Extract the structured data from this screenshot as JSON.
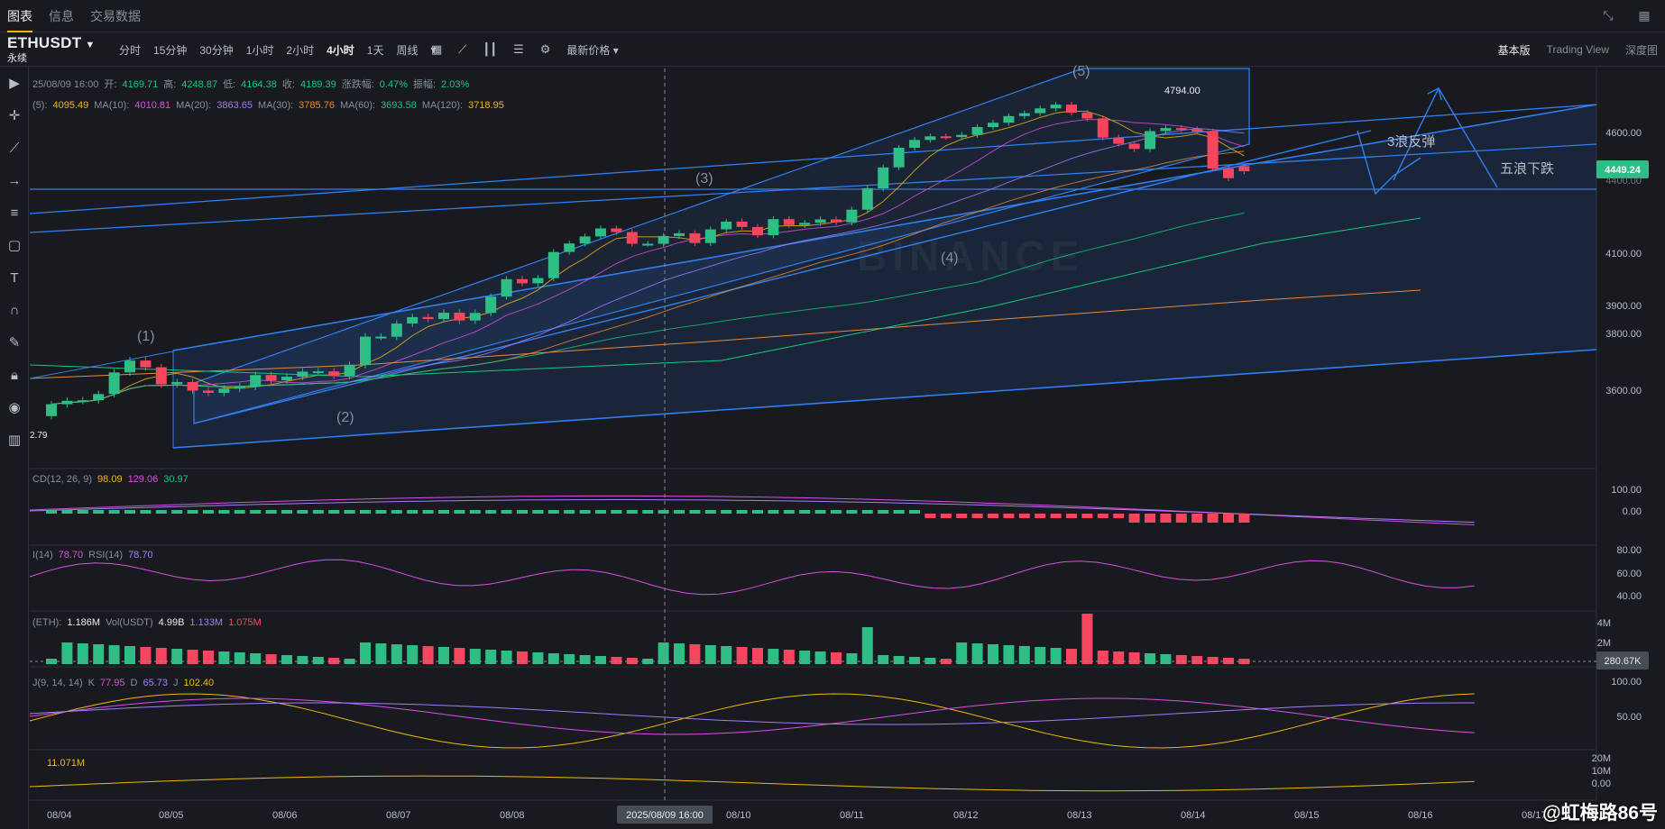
{
  "tabs": [
    "图表",
    "信息",
    "交易数据"
  ],
  "active_tab": 0,
  "symbol": {
    "name": "ETHUSDT",
    "sub": "永续"
  },
  "intervals": [
    "分时",
    "15分钟",
    "30分钟",
    "1小时",
    "2小时",
    "4小时",
    "1天",
    "周线"
  ],
  "active_interval": 5,
  "price_type": "最新价格",
  "views": [
    "基本版",
    "Trading View",
    "深度图"
  ],
  "active_view": 0,
  "ohlc": {
    "date": "25/08/09 16:00",
    "open_l": "开:",
    "open": "4169.71",
    "high_l": "高:",
    "high": "4248.87",
    "low_l": "低:",
    "low": "4164.38",
    "close_l": "收:",
    "close": "4189.39",
    "chg_l": "涨跌幅:",
    "chg": "0.47%",
    "amp_l": "振幅:",
    "amp": "2.03%"
  },
  "ma": {
    "ma5_l": "(5):",
    "ma5": "4095.49",
    "ma10_l": "MA(10):",
    "ma10": "4010.81",
    "ma20_l": "MA(20):",
    "ma20": "3863.65",
    "ma30_l": "MA(30):",
    "ma30": "3785.76",
    "ma60_l": "MA(60):",
    "ma60": "3693.58",
    "ma120_l": "MA(120):",
    "ma120": "3718.95"
  },
  "macd": {
    "label": "CD(12, 26, 9)",
    "dif": "98.09",
    "dea": "129.06",
    "hist": "30.97"
  },
  "rsi": {
    "label1": "I(14)",
    "v1": "78.70",
    "label2": "RSI(14)",
    "v2": "78.70"
  },
  "vol": {
    "label": "(ETH):",
    "v": "1.186M",
    "label2": "Vol(USDT)",
    "v2": "4.99B",
    "v3": "1.133M",
    "v4": "1.075M"
  },
  "kdj": {
    "label": "J(9, 14, 14)",
    "k_l": "K",
    "k": "77.95",
    "d_l": "D",
    "d": "65.73",
    "j_l": "J",
    "j": "102.40"
  },
  "extra": {
    "v": "11.071M"
  },
  "price_axis": [
    "4600.00",
    "4400.00",
    "4100.00",
    "3900.00",
    "3800.00",
    "3600.00"
  ],
  "current_price": "4449.24",
  "macd_axis": [
    "100.00",
    "0.00"
  ],
  "rsi_axis": [
    "80.00",
    "60.00",
    "40.00"
  ],
  "vol_axis": [
    "4M",
    "2M"
  ],
  "vol_current": "280.67K",
  "kdj_axis": [
    "100.00",
    "50.00"
  ],
  "extra_axis": [
    "20M",
    "10M",
    "0.00"
  ],
  "dates": [
    "08/04",
    "08/05",
    "08/06",
    "08/07",
    "08/08",
    "08/10",
    "08/11",
    "08/12",
    "08/13",
    "08/14",
    "08/15",
    "08/16",
    "08/17"
  ],
  "crosshair_date": "2025/08/09 16:00",
  "annotations": {
    "w1": "(1)",
    "w2": "(2)",
    "w3": "(3)",
    "w4": "(4)",
    "w5": "(5)",
    "high": "4794.00",
    "low": "2.79",
    "rebound": "3浪反弹",
    "fivedown": "五浪下跌"
  },
  "watermark": "BINANCE",
  "footer_brand": "@虹梅路86号",
  "colors": {
    "up": "#2ebd85",
    "down": "#f6465d",
    "bg": "#181a20",
    "channel": "#2f7ff0"
  },
  "chart_data": {
    "type": "candlestick",
    "opens": [
      3518,
      3560,
      3572,
      3574,
      3596,
      3672,
      3714,
      3690,
      3630,
      3638,
      3608,
      3600,
      3615,
      3622,
      3663,
      3644,
      3657,
      3675,
      3676,
      3660,
      3699,
      3798,
      3798,
      3845,
      3868,
      3861,
      3884,
      3856,
      3883,
      3944,
      4011,
      3995,
      4015,
      4116,
      4151,
      4180,
      4213,
      4198,
      4150,
      4150,
      4182,
      4193,
      4153,
      4209,
      4241,
      4219,
      4185,
      4251,
      4227,
      4236,
      4250,
      4238,
      4290,
      4378,
      4465,
      4547,
      4580,
      4595,
      4592,
      4601,
      4634,
      4652,
      4680,
      4692,
      4712,
      4728,
      4694,
      4670,
      4590,
      4564,
      4542,
      4617,
      4630,
      4625,
      4615,
      4460,
      4470
    ],
    "closes": [
      3560,
      3572,
      3574,
      3596,
      3672,
      3714,
      3690,
      3630,
      3638,
      3608,
      3600,
      3615,
      3622,
      3663,
      3644,
      3657,
      3675,
      3676,
      3660,
      3699,
      3798,
      3798,
      3845,
      3868,
      3861,
      3884,
      3856,
      3883,
      3944,
      4011,
      3995,
      4015,
      4116,
      4151,
      4180,
      4213,
      4198,
      4150,
      4150,
      4182,
      4193,
      4153,
      4209,
      4241,
      4219,
      4185,
      4251,
      4227,
      4236,
      4250,
      4238,
      4290,
      4378,
      4465,
      4547,
      4580,
      4595,
      4592,
      4601,
      4634,
      4652,
      4680,
      4692,
      4712,
      4728,
      4694,
      4670,
      4590,
      4564,
      4542,
      4617,
      4630,
      4625,
      4615,
      4460,
      4420,
      4449
    ]
  }
}
